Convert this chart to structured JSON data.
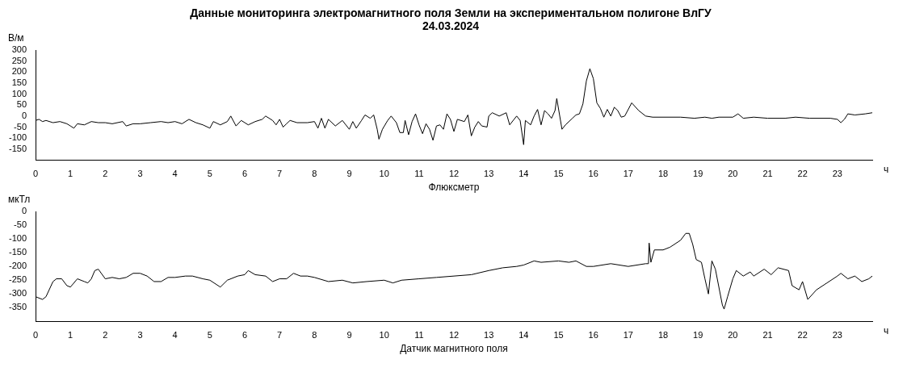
{
  "chart_data": [
    {
      "type": "line",
      "title": "Данные мониторинга электромагнитного поля Земли на экспериментальном полигоне ВлГУ",
      "subtitle": "24.03.2024",
      "ylabel": "В/м",
      "xlabel": "Флюксметр",
      "annotations": [
        "ч"
      ],
      "color": "#000000",
      "marker": "none",
      "xlim": [
        0,
        24
      ],
      "xticks": [
        0,
        1,
        2,
        3,
        4,
        5,
        6,
        7,
        8,
        9,
        10,
        11,
        12,
        13,
        14,
        15,
        16,
        17,
        18,
        19,
        20,
        21,
        22,
        23
      ],
      "ylim": [
        -200,
        300
      ],
      "yticks": [
        -150,
        -100,
        -50,
        0,
        50,
        100,
        150,
        200,
        250,
        300
      ],
      "x": [
        0,
        0.1,
        0.2,
        0.3,
        0.5,
        0.7,
        0.9,
        1.0,
        1.1,
        1.2,
        1.4,
        1.6,
        1.8,
        2.0,
        2.2,
        2.5,
        2.6,
        2.8,
        3.0,
        3.3,
        3.6,
        3.8,
        4.0,
        4.2,
        4.4,
        4.6,
        4.8,
        5.0,
        5.1,
        5.3,
        5.5,
        5.6,
        5.75,
        5.9,
        6.1,
        6.3,
        6.5,
        6.6,
        6.8,
        6.9,
        7.0,
        7.1,
        7.2,
        7.3,
        7.5,
        7.8,
        8.0,
        8.1,
        8.2,
        8.3,
        8.4,
        8.6,
        8.8,
        9.0,
        9.1,
        9.2,
        9.35,
        9.45,
        9.6,
        9.7,
        9.8,
        9.85,
        9.95,
        10.1,
        10.2,
        10.35,
        10.45,
        10.55,
        10.6,
        10.7,
        10.8,
        10.9,
        11.0,
        11.1,
        11.2,
        11.3,
        11.4,
        11.5,
        11.6,
        11.7,
        11.8,
        11.9,
        12.0,
        12.1,
        12.3,
        12.4,
        12.5,
        12.6,
        12.7,
        12.8,
        12.95,
        13.0,
        13.1,
        13.3,
        13.5,
        13.6,
        13.8,
        13.9,
        14.0,
        14.05,
        14.2,
        14.3,
        14.4,
        14.5,
        14.6,
        14.7,
        14.8,
        14.9,
        14.95,
        15.1,
        15.2,
        15.4,
        15.5,
        15.6,
        15.7,
        15.8,
        15.9,
        16.0,
        16.1,
        16.2,
        16.3,
        16.4,
        16.5,
        16.6,
        16.7,
        16.8,
        16.9,
        17.1,
        17.3,
        17.5,
        17.7,
        18.0,
        18.5,
        18.9,
        19.2,
        19.4,
        19.6,
        20.0,
        20.15,
        20.3,
        20.6,
        21.0,
        21.5,
        21.8,
        22.2,
        22.8,
        23.0,
        23.1,
        23.2,
        23.3,
        23.5,
        23.8,
        24
      ],
      "values": [
        -20,
        -15,
        -25,
        -20,
        -30,
        -25,
        -35,
        -45,
        -55,
        -35,
        -40,
        -25,
        -30,
        -30,
        -35,
        -25,
        -45,
        -35,
        -35,
        -30,
        -25,
        -30,
        -25,
        -35,
        -15,
        -30,
        -40,
        -55,
        -25,
        -40,
        -25,
        0,
        -45,
        -20,
        -40,
        -25,
        -15,
        0,
        -20,
        -40,
        -15,
        -50,
        -35,
        -20,
        -30,
        -30,
        -25,
        -55,
        -10,
        -55,
        -15,
        -45,
        -20,
        -60,
        -25,
        -55,
        -20,
        5,
        -10,
        5,
        -60,
        -105,
        -60,
        -20,
        0,
        -30,
        -75,
        -75,
        -20,
        -85,
        -25,
        10,
        -40,
        -80,
        -35,
        -60,
        -110,
        -45,
        -40,
        -60,
        10,
        -15,
        -70,
        -15,
        -25,
        5,
        -90,
        -50,
        -25,
        -45,
        -50,
        0,
        15,
        0,
        15,
        -40,
        0,
        -20,
        -130,
        -20,
        -40,
        0,
        30,
        -40,
        25,
        10,
        -10,
        25,
        80,
        -60,
        -40,
        -10,
        5,
        10,
        55,
        160,
        215,
        170,
        60,
        35,
        -5,
        30,
        0,
        40,
        25,
        -5,
        0,
        60,
        25,
        0,
        -5,
        -5,
        -5,
        -10,
        -5,
        -10,
        -5,
        -5,
        10,
        -10,
        -5,
        -10,
        -10,
        -5,
        -10,
        -10,
        -15,
        -30,
        -15,
        10,
        5,
        10,
        15
      ]
    },
    {
      "type": "line",
      "ylabel": "мкТл",
      "xlabel": "Датчик магнитного поля",
      "annotations": [
        "ч"
      ],
      "color": "#000000",
      "marker": "none",
      "xlim": [
        0,
        24
      ],
      "xticks": [
        0,
        1,
        2,
        3,
        4,
        5,
        6,
        7,
        8,
        9,
        10,
        11,
        12,
        13,
        14,
        15,
        16,
        17,
        18,
        19,
        20,
        21,
        22,
        23
      ],
      "ylim": [
        -400,
        0
      ],
      "yticks": [
        -350,
        -300,
        -250,
        -200,
        -150,
        -100,
        -50,
        0
      ],
      "x": [
        0,
        0.2,
        0.3,
        0.5,
        0.6,
        0.75,
        0.9,
        1.0,
        1.2,
        1.4,
        1.5,
        1.6,
        1.7,
        1.8,
        2.0,
        2.2,
        2.4,
        2.6,
        2.8,
        3.0,
        3.2,
        3.4,
        3.6,
        3.8,
        4.0,
        4.3,
        4.5,
        4.8,
        5.0,
        5.3,
        5.5,
        5.8,
        6.0,
        6.1,
        6.3,
        6.6,
        6.8,
        7.0,
        7.2,
        7.4,
        7.6,
        7.8,
        8.0,
        8.4,
        8.8,
        9.1,
        9.5,
        10.0,
        10.25,
        10.5,
        11.0,
        11.5,
        12.0,
        12.5,
        13.0,
        13.4,
        13.8,
        14.0,
        14.3,
        14.5,
        15.0,
        15.3,
        15.5,
        15.8,
        16.0,
        16.5,
        17.0,
        17.5,
        17.58,
        17.6,
        17.65,
        17.75,
        18.0,
        18.2,
        18.5,
        18.65,
        18.75,
        18.85,
        18.95,
        19.1,
        19.2,
        19.3,
        19.4,
        19.5,
        19.7,
        19.75,
        19.85,
        20.0,
        20.1,
        20.3,
        20.5,
        20.6,
        20.9,
        21.1,
        21.3,
        21.6,
        21.7,
        21.9,
        22.0,
        22.15,
        22.4,
        22.7,
        23.0,
        23.1,
        23.3,
        23.5,
        23.7,
        23.9,
        24
      ],
      "values": [
        -310,
        -320,
        -310,
        -255,
        -245,
        -245,
        -270,
        -275,
        -245,
        -255,
        -260,
        -245,
        -215,
        -210,
        -245,
        -240,
        -245,
        -240,
        -225,
        -225,
        -235,
        -255,
        -255,
        -240,
        -240,
        -235,
        -235,
        -245,
        -250,
        -275,
        -250,
        -235,
        -230,
        -215,
        -230,
        -235,
        -255,
        -245,
        -245,
        -225,
        -235,
        -235,
        -240,
        -255,
        -250,
        -260,
        -255,
        -250,
        -260,
        -250,
        -245,
        -240,
        -235,
        -230,
        -215,
        -205,
        -200,
        -195,
        -180,
        -185,
        -180,
        -185,
        -180,
        -200,
        -200,
        -190,
        -200,
        -190,
        -190,
        -115,
        -185,
        -140,
        -140,
        -130,
        -105,
        -80,
        -80,
        -120,
        -175,
        -185,
        -245,
        -300,
        -180,
        -210,
        -340,
        -355,
        -310,
        -245,
        -215,
        -235,
        -220,
        -235,
        -210,
        -230,
        -205,
        -215,
        -270,
        -285,
        -255,
        -320,
        -285,
        -260,
        -235,
        -225,
        -245,
        -235,
        -255,
        -245,
        -235
      ]
    }
  ]
}
